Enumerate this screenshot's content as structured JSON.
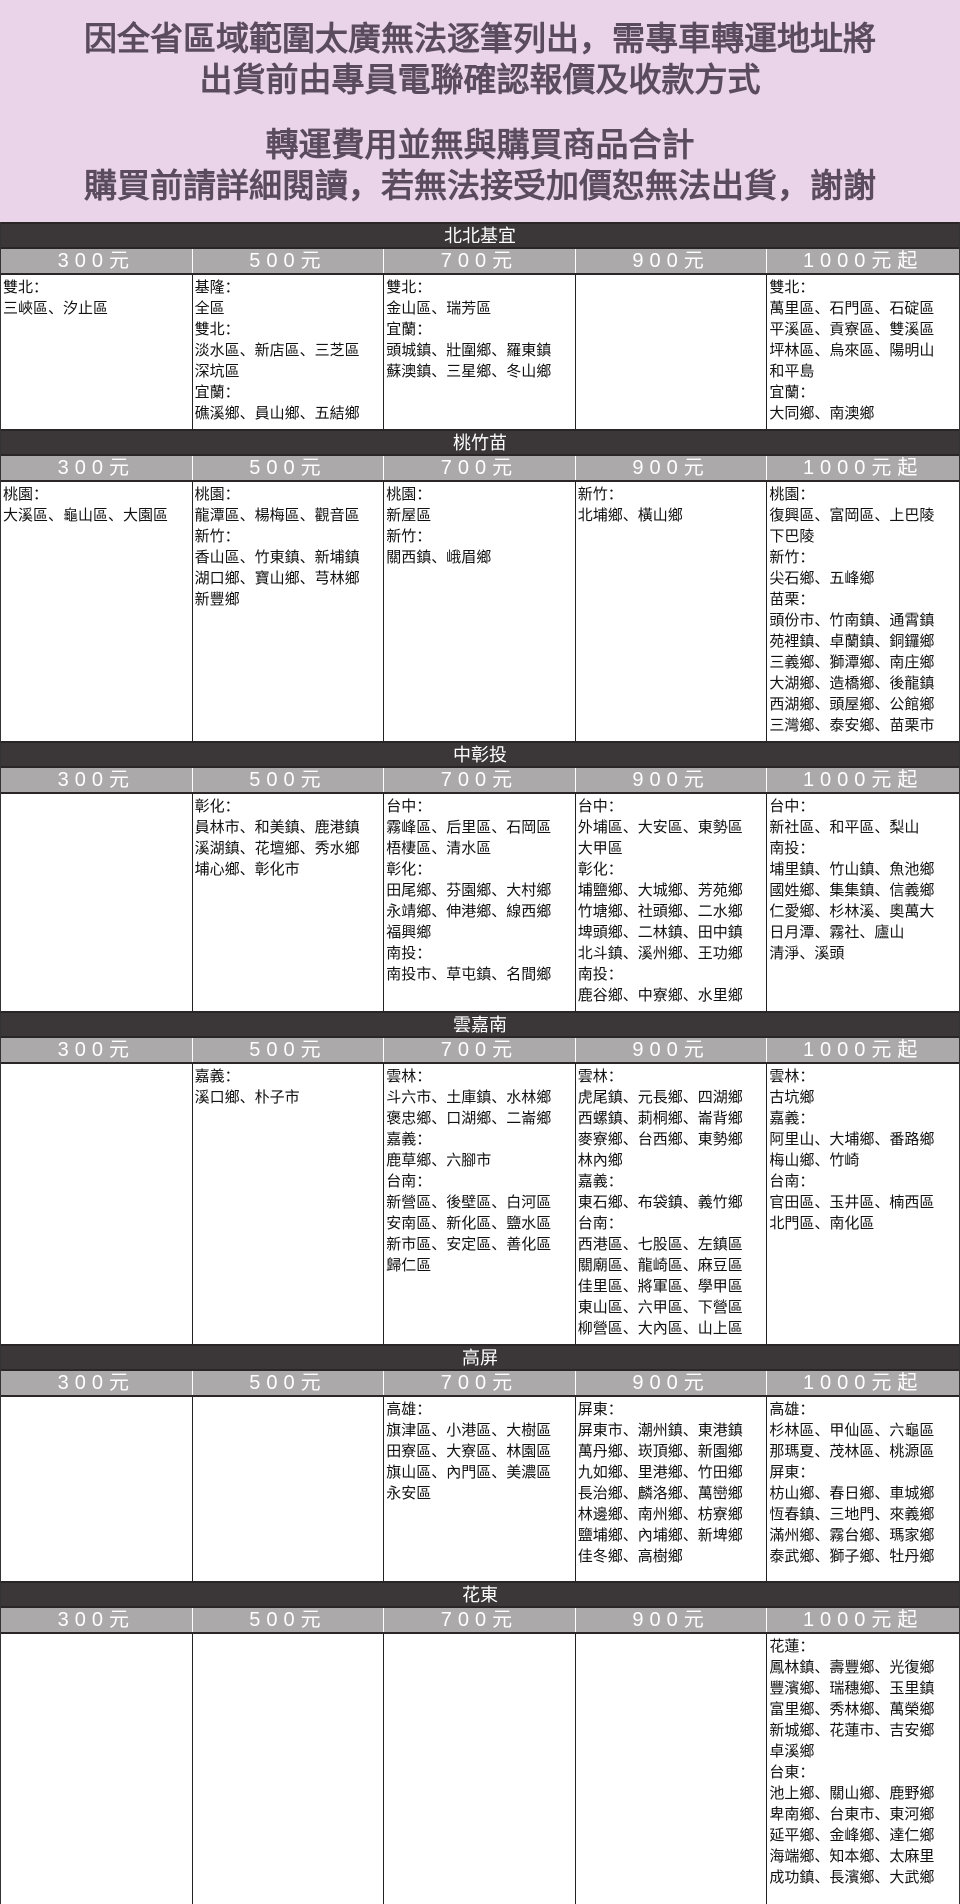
{
  "notice": {
    "lines": [
      "因全省區域範圍太廣無法逐筆列出，需專車轉運地址將",
      "出貨前由專員電聯確認報價及收款方式",
      "轉運費用並無與購買商品合計",
      "購買前請詳細閱讀，若無法接受加價恕無法出貨，謝謝"
    ]
  },
  "colors": {
    "notice_bg": "#ead4e9",
    "notice_text": "#5b4b5f",
    "section_bar": "#3b3738",
    "price_bar": "#aba9aa"
  },
  "sections": [
    {
      "title": "北北基宜",
      "prices": [
        "300元",
        "500元",
        "700元",
        "900元",
        "1000元起"
      ],
      "cells": [
        [
          "雙北：",
          "三峽區、汐止區"
        ],
        [
          "基隆：",
          "全區",
          "雙北：",
          "淡水區、新店區、三芝區",
          "深坑區",
          "宜蘭：",
          "礁溪鄉、員山鄉、五結鄉"
        ],
        [
          "雙北：",
          "金山區、瑞芳區",
          "宜蘭：",
          "頭城鎮、壯圍鄉、羅東鎮",
          "蘇澳鎮、三星鄉、冬山鄉"
        ],
        [],
        [
          "雙北：",
          "萬里區、石門區、石碇區",
          "平溪區、貢寮區、雙溪區",
          "坪林區、烏來區、陽明山",
          "和平島",
          "宜蘭：",
          "大同鄉、南澳鄉"
        ]
      ]
    },
    {
      "title": "桃竹苗",
      "prices": [
        "300元",
        "500元",
        "700元",
        "900元",
        "1000元起"
      ],
      "cells": [
        [
          "桃園：",
          "大溪區、龜山區、大園區"
        ],
        [
          "桃園：",
          "龍潭區、楊梅區、觀音區",
          "新竹：",
          "香山區、竹東鎮、新埔鎮",
          "湖口鄉、寶山鄉、芎林鄉",
          "新豐鄉"
        ],
        [
          "桃園：",
          "新屋區",
          "新竹：",
          "關西鎮、峨眉鄉"
        ],
        [
          "新竹：",
          "北埔鄉、橫山鄉"
        ],
        [
          "桃園：",
          "復興區、富岡區、上巴陵",
          "下巴陵",
          "新竹：",
          "尖石鄉、五峰鄉",
          "苗栗：",
          "頭份市、竹南鎮、通霄鎮",
          "苑裡鎮、卓蘭鎮、銅鑼鄉",
          "三義鄉、獅潭鄉、南庄鄉",
          "大湖鄉、造橋鄉、後龍鎮",
          "西湖鄉、頭屋鄉、公館鄉",
          "三灣鄉、泰安鄉、苗栗市"
        ]
      ]
    },
    {
      "title": "中彰投",
      "prices": [
        "300元",
        "500元",
        "700元",
        "900元",
        "1000元起"
      ],
      "cells": [
        [],
        [
          "彰化：",
          "員林市、和美鎮、鹿港鎮",
          "溪湖鎮、花壇鄉、秀水鄉",
          "埔心鄉、彰化市"
        ],
        [
          "台中：",
          "霧峰區、后里區、石岡區",
          "梧棲區、清水區",
          "彰化：",
          "田尾鄉、芬園鄉、大村鄉",
          "永靖鄉、伸港鄉、線西鄉",
          "福興鄉",
          "南投：",
          "南投市、草屯鎮、名間鄉"
        ],
        [
          "台中：",
          "外埔區、大安區、東勢區",
          "大甲區",
          "彰化：",
          "埔鹽鄉、大城鄉、芳苑鄉",
          "竹塘鄉、社頭鄉、二水鄉",
          "埤頭鄉、二林鎮、田中鎮",
          "北斗鎮、溪州鄉、王功鄉",
          "南投：",
          "鹿谷鄉、中寮鄉、水里鄉"
        ],
        [
          "台中：",
          "新社區、和平區、梨山",
          "南投：",
          "埔里鎮、竹山鎮、魚池鄉",
          "國姓鄉、集集鎮、信義鄉",
          "仁愛鄉、杉林溪、奧萬大",
          "日月潭、霧社、廬山",
          "清淨、溪頭"
        ]
      ]
    },
    {
      "title": "雲嘉南",
      "prices": [
        "300元",
        "500元",
        "700元",
        "900元",
        "1000元起"
      ],
      "cells": [
        [],
        [
          "嘉義：",
          "溪口鄉、朴子市"
        ],
        [
          "雲林：",
          "斗六市、土庫鎮、水林鄉",
          "褒忠鄉、口湖鄉、二崙鄉",
          "嘉義：",
          "鹿草鄉、六腳市",
          "台南：",
          "新營區、後壁區、白河區",
          "安南區、新化區、鹽水區",
          "新市區、安定區、善化區",
          "歸仁區"
        ],
        [
          "雲林：",
          "虎尾鎮、元長鄉、四湖鄉",
          "西螺鎮、莿桐鄉、崙背鄉",
          "麥寮鄉、台西鄉、東勢鄉",
          "林內鄉",
          "嘉義：",
          "東石鄉、布袋鎮、義竹鄉",
          "台南：",
          "西港區、七股區、左鎮區",
          "關廟區、龍崎區、麻豆區",
          "佳里區、將軍區、學甲區",
          "東山區、六甲區、下營區",
          "柳營區、大內區、山上區"
        ],
        [
          "雲林：",
          "古坑鄉",
          "嘉義：",
          "阿里山、大埔鄉、番路鄉",
          "梅山鄉、竹崎",
          "台南：",
          "官田區、玉井區、楠西區",
          "北門區、南化區"
        ]
      ]
    },
    {
      "title": "高屏",
      "prices": [
        "300元",
        "500元",
        "700元",
        "900元",
        "1000元起"
      ],
      "cells": [
        [],
        [],
        [
          "高雄：",
          "旗津區、小港區、大樹區",
          "田寮區、大寮區、林園區",
          "旗山區、內門區、美濃區",
          "永安區"
        ],
        [
          "屏東：",
          "屏東市、潮州鎮、東港鎮",
          "萬丹鄉、崁頂鄉、新園鄉",
          "九如鄉、里港鄉、竹田鄉",
          "長治鄉、麟洛鄉、萬巒鄉",
          "林邊鄉、南州鄉、枋寮鄉",
          "鹽埔鄉、內埔鄉、新埤鄉",
          "佳冬鄉、高樹鄉"
        ],
        [
          "高雄：",
          "杉林區、甲仙區、六龜區",
          "那瑪夏、茂林區、桃源區",
          "屏東：",
          "枋山鄉、春日鄉、車城鄉",
          "恆春鎮、三地門、來義鄉",
          "滿州鄉、霧台鄉、瑪家鄉",
          "泰武鄉、獅子鄉、牡丹鄉"
        ]
      ]
    },
    {
      "title": "花東",
      "prices": [
        "300元",
        "500元",
        "700元",
        "900元",
        "1000元起"
      ],
      "cells": [
        [],
        [],
        [],
        [],
        [
          "花蓮：",
          "鳳林鎮、壽豐鄉、光復鄉",
          "豐濱鄉、瑞穗鄉、玉里鎮",
          "富里鄉、秀林鄉、萬榮鄉",
          "新城鄉、花蓮市、吉安鄉",
          "卓溪鄉",
          "台東：",
          "池上鄉、關山鄉、鹿野鄉",
          "卑南鄉、台東市、東河鄉",
          "延平鄉、金峰鄉、達仁鄉",
          "海端鄉、知本鄉、太麻里",
          "成功鎮、長濱鄉、大武鄉"
        ]
      ]
    }
  ]
}
